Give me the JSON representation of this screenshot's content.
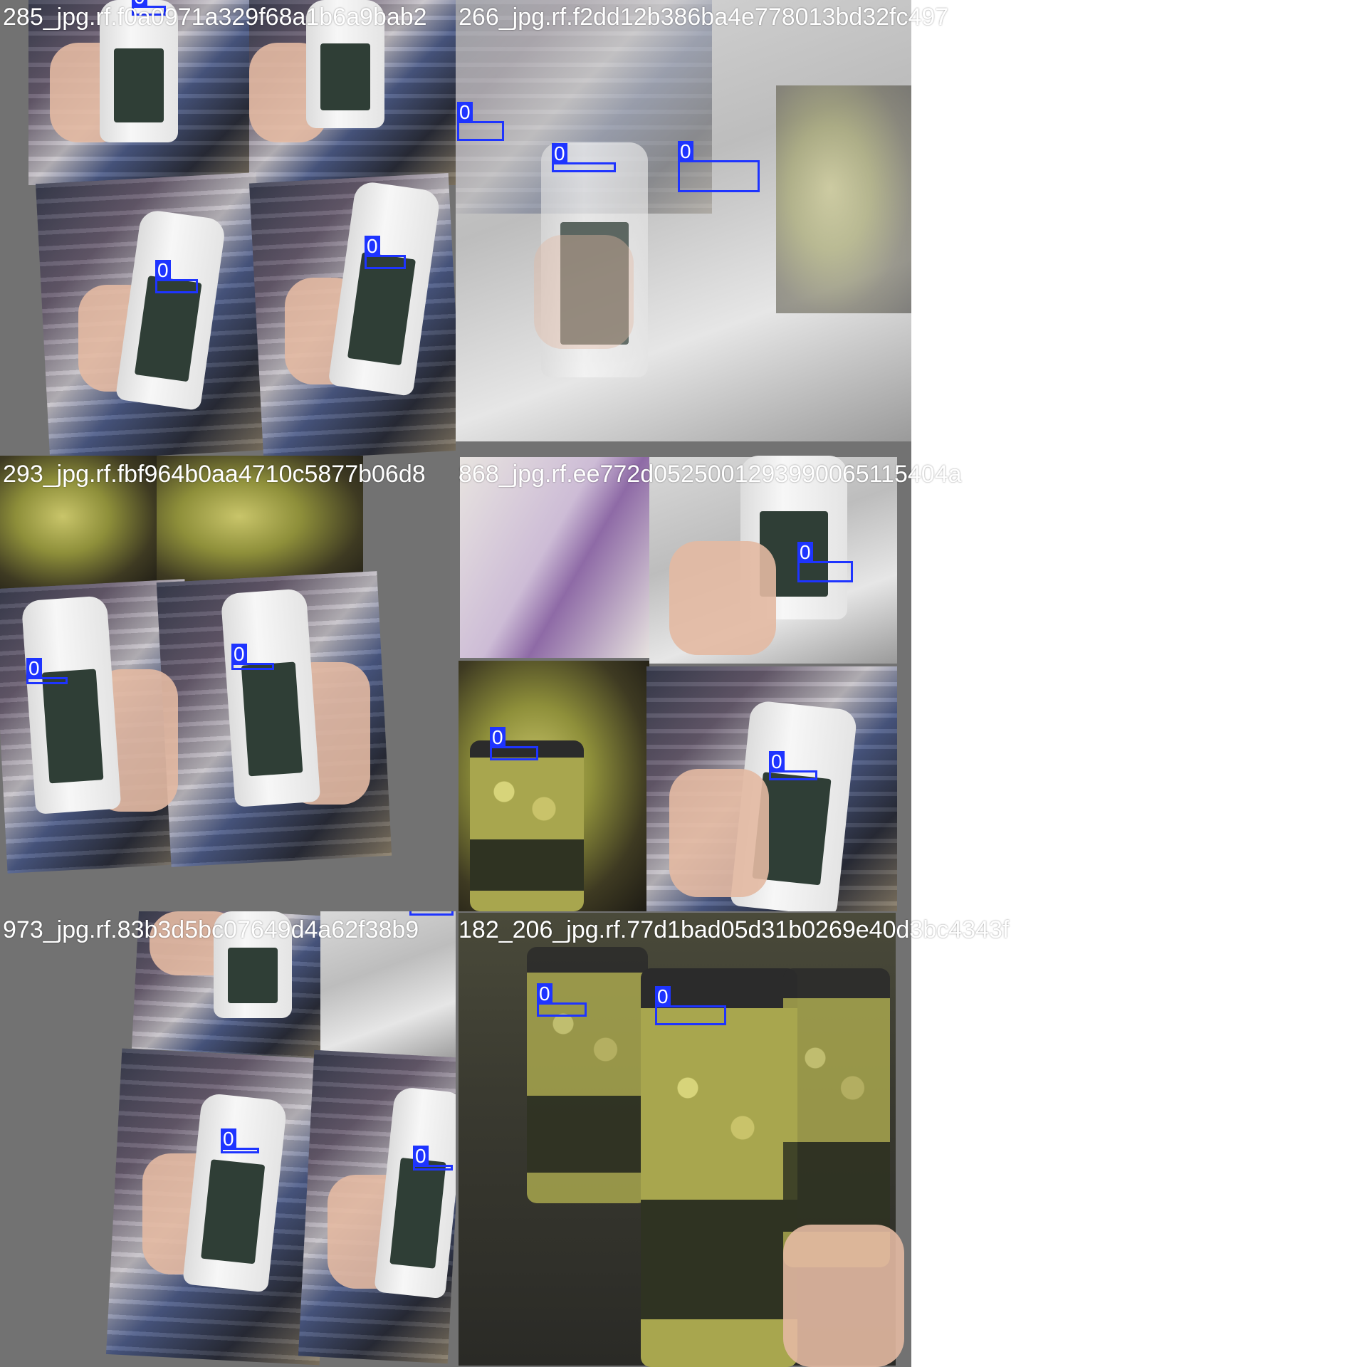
{
  "grid": {
    "tiles": [
      {
        "filename": "285_jpg.rf.f0a0971a329f68a1b6a9bab2",
        "boxes": [
          {
            "label": "0"
          },
          {
            "label": "0"
          },
          {
            "label": "0"
          }
        ]
      },
      {
        "filename": "266_jpg.rf.f2dd12b386ba4e778013bd32fc497",
        "boxes": [
          {
            "label": "0"
          },
          {
            "label": "0"
          },
          {
            "label": "0"
          }
        ]
      },
      {
        "filename": "293_jpg.rf.fbf964b0aa4710c5877b06d8",
        "boxes": [
          {
            "label": "0"
          },
          {
            "label": "0"
          }
        ]
      },
      {
        "filename": "868_jpg.rf.ee772d0525001293990065115404a",
        "boxes": [
          {
            "label": "0"
          },
          {
            "label": "0"
          },
          {
            "label": "0"
          }
        ]
      },
      {
        "filename": "973_jpg.rf.83b3d5bc07649d4a62f38b9",
        "boxes": [
          {
            "label": "0"
          },
          {
            "label": "0"
          },
          {
            "label": "0"
          }
        ]
      },
      {
        "filename": "182_206_jpg.rf.77d1bad05d31b0269e40d3bc4343f",
        "boxes": [
          {
            "label": "0"
          },
          {
            "label": "0"
          }
        ]
      }
    ]
  }
}
